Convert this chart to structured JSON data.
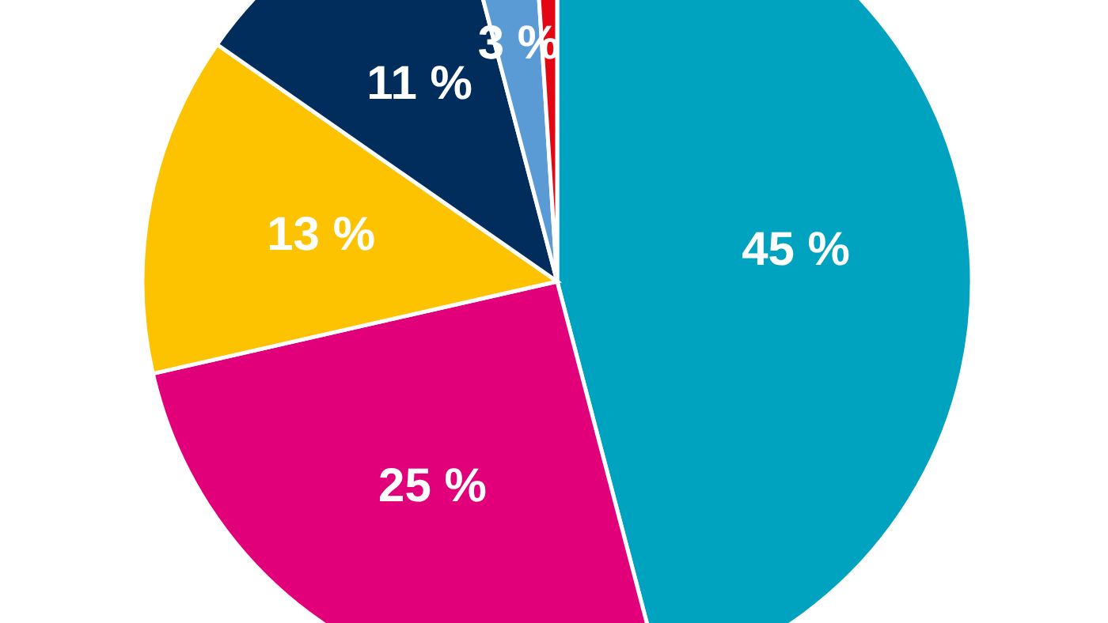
{
  "chart_data": {
    "type": "pie",
    "categories": [
      null,
      null,
      null,
      null,
      null,
      null
    ],
    "values": [
      45,
      25,
      13,
      11,
      3,
      1
    ],
    "colors": [
      "#00a3bf",
      "#e2007a",
      "#fdc300",
      "#002d5c",
      "#5b9bd5",
      "#e30613"
    ],
    "value_labels": [
      "45 %",
      "25 %",
      "13 %",
      "11 %",
      "3 %",
      null
    ]
  }
}
